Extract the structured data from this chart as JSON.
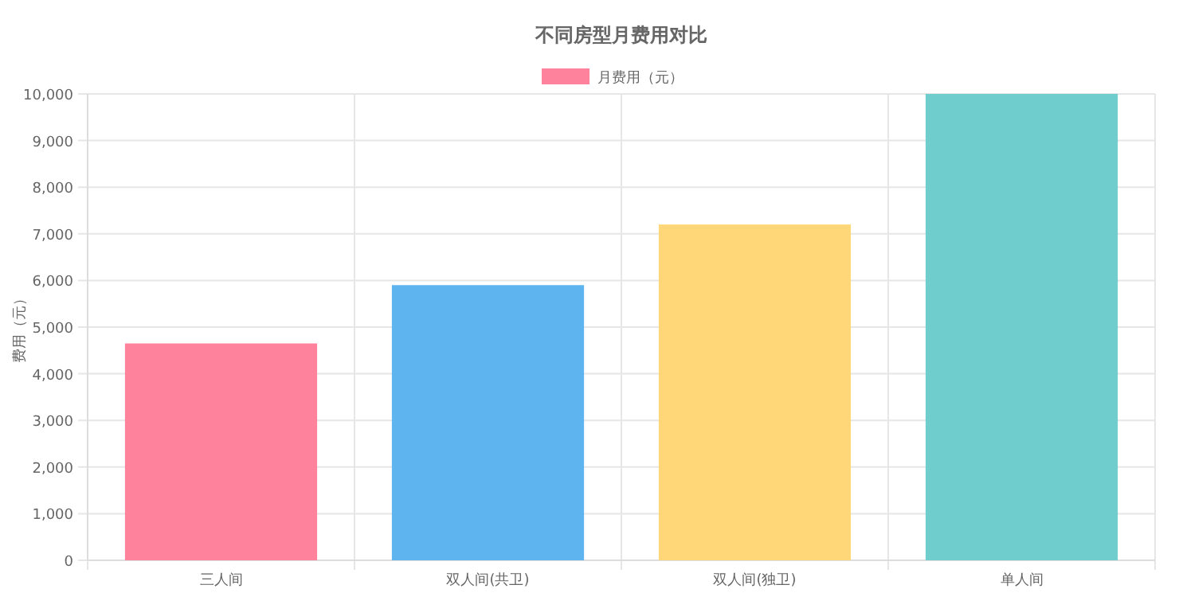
{
  "chart_data": {
    "type": "bar",
    "title": "不同房型月费用对比",
    "ylabel": "费用（元）",
    "categories": [
      "三人间",
      "双人间(共卫)",
      "双人间(独卫)",
      "单人间"
    ],
    "series": [
      {
        "name": "月费用（元）",
        "colors": [
          "#ff829d",
          "#5eb4ef",
          "#ffd778",
          "#6fcdcd"
        ],
        "values": [
          4650,
          5900,
          7200,
          10000
        ]
      }
    ],
    "ylim": [
      0,
      10000
    ],
    "yticks": [
      0,
      {
        "value": 1000,
        "label": "1,000"
      },
      {
        "value": 2000,
        "label": "2,000"
      },
      {
        "value": 3000,
        "label": "3,000"
      },
      {
        "value": 4000,
        "label": "4,000"
      },
      {
        "value": 5000,
        "label": "5,000"
      },
      {
        "value": 6000,
        "label": "6,000"
      },
      {
        "value": 7000,
        "label": "7,000"
      },
      {
        "value": 8000,
        "label": "8,000"
      },
      {
        "value": 9000,
        "label": "9,000"
      },
      {
        "value": 10000,
        "label": "10,000"
      }
    ],
    "grid": true,
    "legend": "top"
  }
}
